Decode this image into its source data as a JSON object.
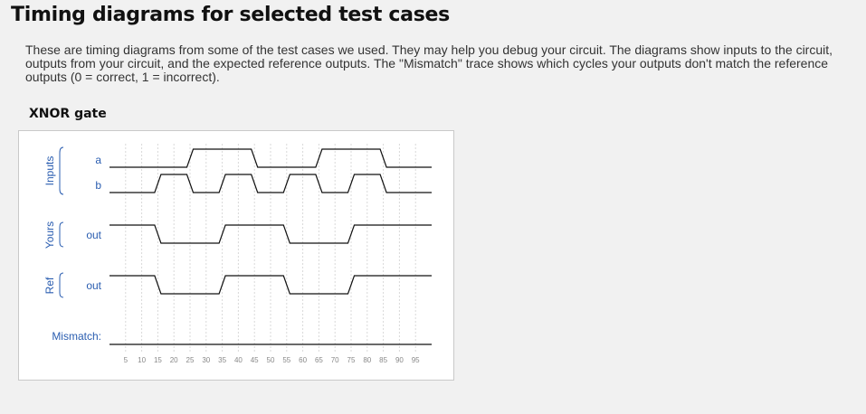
{
  "page": {
    "title": "Timing diagrams for selected test cases",
    "intro": "These are timing diagrams from some of the test cases we used. They may help you debug your circuit. The diagrams show inputs to the circuit, outputs from your circuit, and the expected reference outputs. The \"Mismatch\" trace shows which cycles your outputs don't match the reference outputs (0 = correct, 1 = incorrect).",
    "section_title": "XNOR gate"
  },
  "timing": {
    "colors": {
      "trace": "#111111",
      "label": "#2a5db0",
      "grid": "#d9d9d9",
      "tick": "#888888"
    },
    "groups": [
      {
        "label": "Inputs",
        "signals": [
          "a",
          "b"
        ]
      },
      {
        "label": "Yours",
        "signals": [
          "out"
        ]
      },
      {
        "label": "Ref",
        "signals": [
          "out"
        ]
      }
    ],
    "mismatch_label": "Mismatch:",
    "time_ticks": [
      5,
      10,
      15,
      20,
      25,
      30,
      35,
      40,
      45,
      50,
      55,
      60,
      65,
      70,
      75,
      80,
      85,
      90,
      95
    ],
    "t_range": [
      0,
      100
    ],
    "signals": [
      {
        "name": "a",
        "group": "Inputs",
        "transitions": [
          [
            0,
            0
          ],
          [
            25,
            1
          ],
          [
            45,
            0
          ],
          [
            65,
            1
          ],
          [
            85,
            0
          ]
        ]
      },
      {
        "name": "b",
        "group": "Inputs",
        "transitions": [
          [
            0,
            0
          ],
          [
            15,
            1
          ],
          [
            25,
            0
          ],
          [
            35,
            1
          ],
          [
            45,
            0
          ],
          [
            55,
            1
          ],
          [
            65,
            0
          ],
          [
            75,
            1
          ],
          [
            85,
            0
          ]
        ]
      },
      {
        "name": "out",
        "group": "Yours",
        "transitions": [
          [
            0,
            1
          ],
          [
            15,
            0
          ],
          [
            35,
            1
          ],
          [
            55,
            0
          ],
          [
            75,
            1
          ]
        ]
      },
      {
        "name": "out",
        "group": "Ref",
        "transitions": [
          [
            0,
            1
          ],
          [
            15,
            0
          ],
          [
            35,
            1
          ],
          [
            55,
            0
          ],
          [
            75,
            1
          ]
        ]
      },
      {
        "name": "Mismatch",
        "group": "",
        "transitions": [
          [
            0,
            0
          ]
        ]
      }
    ]
  }
}
